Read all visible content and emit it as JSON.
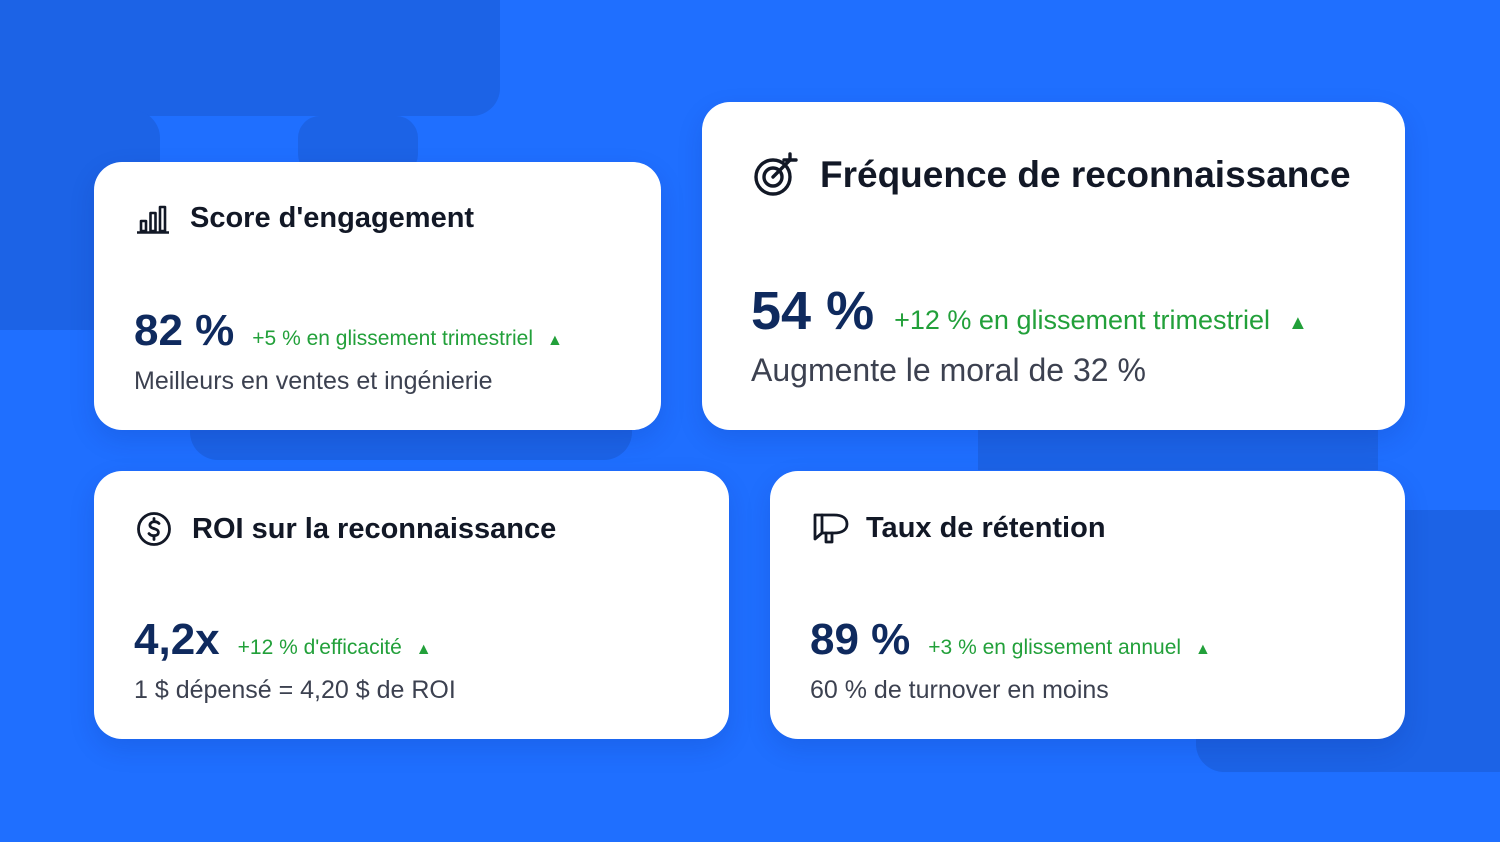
{
  "colors": {
    "background": "#1F6FFF",
    "card": "#FFFFFF",
    "value": "#0F2A5E",
    "positive_trend": "#22A03A",
    "title": "#121826",
    "description": "#3C4150"
  },
  "cards": [
    {
      "icon": "bar-chart-icon",
      "title": "Score d'engagement",
      "value": "82 %",
      "trend": "+5 % en glissement trimestriel",
      "trend_arrow": "▲",
      "description": "Meilleurs en ventes et ingénierie"
    },
    {
      "icon": "target-icon",
      "title": "Fréquence de reconnaissance",
      "value": "54 %",
      "trend": "+12 % en glissement trimestriel",
      "trend_arrow": "▲",
      "description": "Augmente le moral de 32 %"
    },
    {
      "icon": "dollar-circle-icon",
      "title": "ROI sur la reconnaissance",
      "value": "4,2x",
      "trend": "+12 % d'efficacité",
      "trend_arrow": "▲",
      "description": "1 $ dépensé = 4,20 $ de ROI"
    },
    {
      "icon": "megaphone-icon",
      "title": "Taux de rétention",
      "value": "89 %",
      "trend": "+3 % en glissement annuel",
      "trend_arrow": "▲",
      "description": "60 % de turnover en moins"
    }
  ]
}
